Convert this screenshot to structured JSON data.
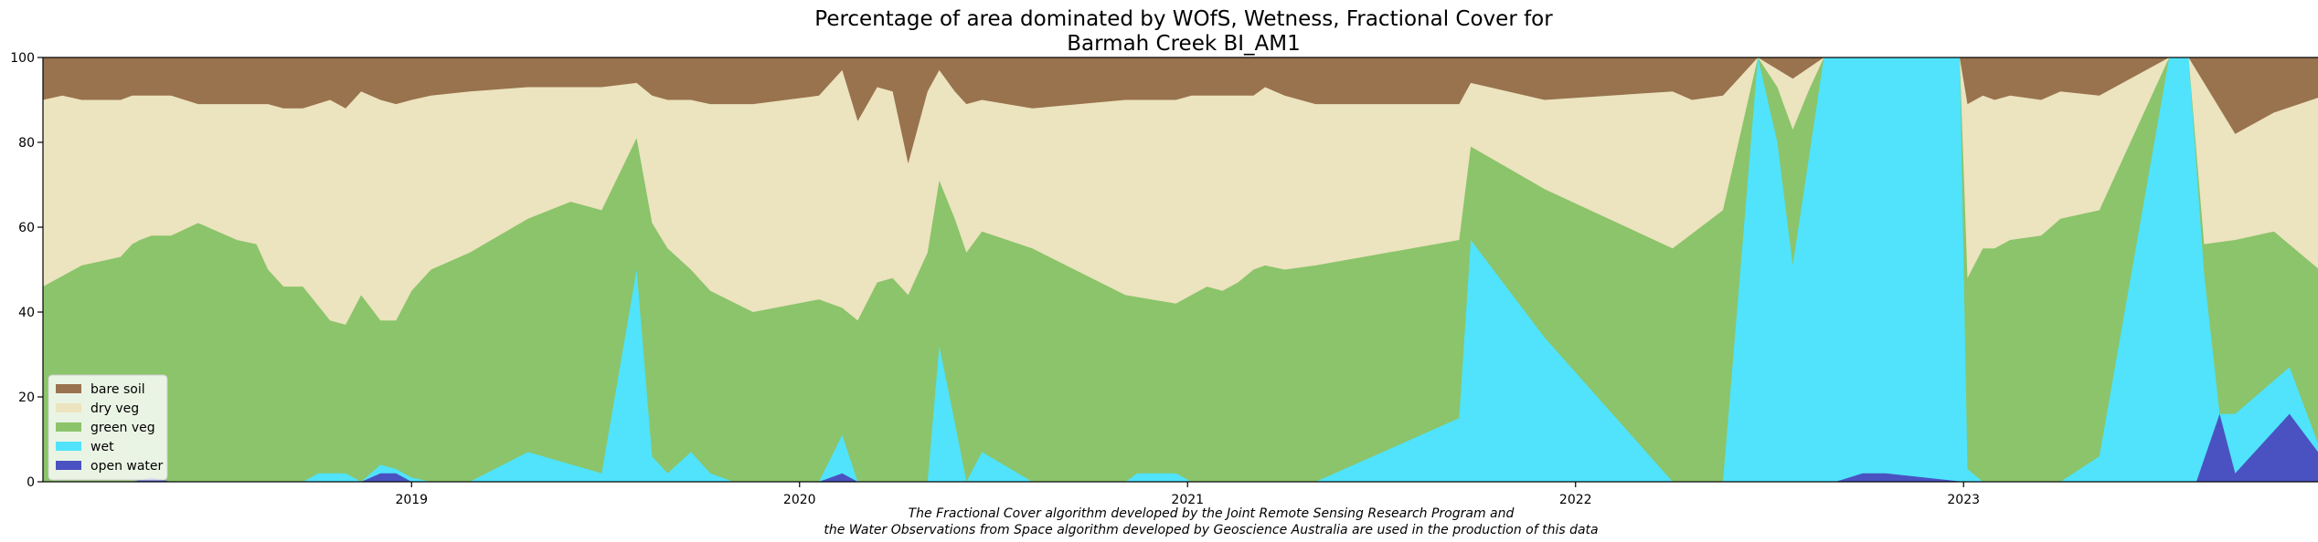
{
  "chart_data": {
    "type": "area",
    "title_lines": [
      "Percentage of area dominated by WOfS, Wetness, Fractional Cover for",
      "Barmah Creek BI_AM1"
    ],
    "caption_lines": [
      "The Fractional Cover algorithm developed by the Joint Remote Sensing Research Program and",
      "the Water Observations from Space algorithm developed by Geoscience Australia are used in the production of this data"
    ],
    "xlim": [
      2018.05,
      2023.93
    ],
    "ylim": [
      0,
      100
    ],
    "x_ticks": [
      {
        "label": "2019",
        "value": 2019.0
      },
      {
        "label": "2020",
        "value": 2020.0
      },
      {
        "label": "2021",
        "value": 2021.0
      },
      {
        "label": "2022",
        "value": 2022.0
      },
      {
        "label": "2023",
        "value": 2023.0
      }
    ],
    "y_ticks": [
      0,
      20,
      40,
      60,
      80,
      100
    ],
    "legend_position": "lower left",
    "series": [
      {
        "name": "open water",
        "color": "#4a52c2",
        "points": [
          [
            2018.05,
            0
          ],
          [
            2018.28,
            0
          ],
          [
            2018.33,
            1
          ],
          [
            2018.38,
            0
          ],
          [
            2018.87,
            0
          ],
          [
            2018.92,
            2
          ],
          [
            2018.96,
            2
          ],
          [
            2019.0,
            0
          ],
          [
            2020.05,
            0
          ],
          [
            2020.11,
            2
          ],
          [
            2020.15,
            0
          ],
          [
            2022.67,
            0
          ],
          [
            2022.74,
            2
          ],
          [
            2022.8,
            2
          ],
          [
            2023.0,
            0
          ],
          [
            2023.6,
            0
          ],
          [
            2023.66,
            16
          ],
          [
            2023.7,
            2
          ],
          [
            2023.84,
            16
          ],
          [
            2023.93,
            5
          ]
        ]
      },
      {
        "name": "wet",
        "color": "#50e3fb",
        "points": [
          [
            2018.05,
            0
          ],
          [
            2018.28,
            0
          ],
          [
            2018.33,
            1
          ],
          [
            2018.38,
            0
          ],
          [
            2018.72,
            0
          ],
          [
            2018.76,
            2
          ],
          [
            2018.83,
            2
          ],
          [
            2018.87,
            0
          ],
          [
            2018.92,
            4
          ],
          [
            2018.96,
            3
          ],
          [
            2019.0,
            1
          ],
          [
            2019.05,
            0
          ],
          [
            2019.15,
            0
          ],
          [
            2019.3,
            7
          ],
          [
            2019.49,
            2
          ],
          [
            2019.58,
            50
          ],
          [
            2019.62,
            6
          ],
          [
            2019.66,
            2
          ],
          [
            2019.72,
            7
          ],
          [
            2019.77,
            2
          ],
          [
            2019.83,
            0
          ],
          [
            2020.05,
            0
          ],
          [
            2020.11,
            11
          ],
          [
            2020.15,
            0
          ],
          [
            2020.33,
            0
          ],
          [
            2020.36,
            32
          ],
          [
            2020.4,
            14
          ],
          [
            2020.43,
            0
          ],
          [
            2020.47,
            7
          ],
          [
            2020.6,
            0
          ],
          [
            2020.84,
            0
          ],
          [
            2020.87,
            2
          ],
          [
            2020.97,
            2
          ],
          [
            2021.01,
            0
          ],
          [
            2021.33,
            0
          ],
          [
            2021.7,
            15
          ],
          [
            2021.73,
            57
          ],
          [
            2021.92,
            34
          ],
          [
            2022.25,
            0
          ],
          [
            2022.38,
            0
          ],
          [
            2022.47,
            100
          ],
          [
            2022.52,
            80
          ],
          [
            2022.56,
            51
          ],
          [
            2022.64,
            100
          ],
          [
            2022.99,
            100
          ],
          [
            2023.01,
            3
          ],
          [
            2023.05,
            0
          ],
          [
            2023.25,
            0
          ],
          [
            2023.35,
            6
          ],
          [
            2023.53,
            100
          ],
          [
            2023.58,
            100
          ],
          [
            2023.62,
            49
          ],
          [
            2023.66,
            16
          ],
          [
            2023.7,
            16
          ],
          [
            2023.84,
            27
          ],
          [
            2023.93,
            5
          ]
        ]
      },
      {
        "name": "green veg",
        "color": "#8bc46a",
        "points": [
          [
            2018.05,
            46
          ],
          [
            2018.15,
            51
          ],
          [
            2018.2,
            52
          ],
          [
            2018.25,
            53
          ],
          [
            2018.28,
            56
          ],
          [
            2018.3,
            57
          ],
          [
            2018.33,
            58
          ],
          [
            2018.38,
            58
          ],
          [
            2018.45,
            61
          ],
          [
            2018.55,
            57
          ],
          [
            2018.6,
            56
          ],
          [
            2018.63,
            50
          ],
          [
            2018.67,
            46
          ],
          [
            2018.72,
            46
          ],
          [
            2018.79,
            38
          ],
          [
            2018.83,
            37
          ],
          [
            2018.87,
            44
          ],
          [
            2018.92,
            38
          ],
          [
            2018.96,
            38
          ],
          [
            2019.0,
            45
          ],
          [
            2019.05,
            50
          ],
          [
            2019.15,
            54
          ],
          [
            2019.3,
            62
          ],
          [
            2019.41,
            66
          ],
          [
            2019.49,
            64
          ],
          [
            2019.58,
            81
          ],
          [
            2019.62,
            61
          ],
          [
            2019.66,
            55
          ],
          [
            2019.72,
            50
          ],
          [
            2019.77,
            45
          ],
          [
            2019.88,
            40
          ],
          [
            2020.05,
            43
          ],
          [
            2020.11,
            41
          ],
          [
            2020.15,
            38
          ],
          [
            2020.2,
            47
          ],
          [
            2020.24,
            48
          ],
          [
            2020.28,
            44
          ],
          [
            2020.33,
            54
          ],
          [
            2020.36,
            71
          ],
          [
            2020.4,
            62
          ],
          [
            2020.43,
            54
          ],
          [
            2020.47,
            59
          ],
          [
            2020.6,
            55
          ],
          [
            2020.84,
            44
          ],
          [
            2020.97,
            42
          ],
          [
            2021.01,
            44
          ],
          [
            2021.05,
            46
          ],
          [
            2021.09,
            45
          ],
          [
            2021.13,
            47
          ],
          [
            2021.17,
            50
          ],
          [
            2021.2,
            51
          ],
          [
            2021.25,
            50
          ],
          [
            2021.33,
            51
          ],
          [
            2021.7,
            57
          ],
          [
            2021.73,
            79
          ],
          [
            2021.92,
            69
          ],
          [
            2022.25,
            55
          ],
          [
            2022.38,
            64
          ],
          [
            2022.47,
            100
          ],
          [
            2022.52,
            93
          ],
          [
            2022.56,
            83
          ],
          [
            2022.6,
            92
          ],
          [
            2022.64,
            100
          ],
          [
            2022.99,
            100
          ],
          [
            2023.01,
            48
          ],
          [
            2023.05,
            55
          ],
          [
            2023.08,
            55
          ],
          [
            2023.12,
            57
          ],
          [
            2023.2,
            58
          ],
          [
            2023.25,
            62
          ],
          [
            2023.35,
            64
          ],
          [
            2023.53,
            100
          ],
          [
            2023.58,
            100
          ],
          [
            2023.62,
            56
          ],
          [
            2023.7,
            57
          ],
          [
            2023.8,
            59
          ],
          [
            2023.93,
            49
          ]
        ]
      },
      {
        "name": "dry veg",
        "color": "#ece3bf",
        "points": [
          [
            2018.05,
            90
          ],
          [
            2018.1,
            91
          ],
          [
            2018.15,
            90
          ],
          [
            2018.2,
            90
          ],
          [
            2018.25,
            90
          ],
          [
            2018.28,
            91
          ],
          [
            2018.33,
            91
          ],
          [
            2018.38,
            91
          ],
          [
            2018.45,
            89
          ],
          [
            2018.55,
            89
          ],
          [
            2018.6,
            89
          ],
          [
            2018.63,
            89
          ],
          [
            2018.67,
            88
          ],
          [
            2018.72,
            88
          ],
          [
            2018.79,
            90
          ],
          [
            2018.83,
            88
          ],
          [
            2018.87,
            92
          ],
          [
            2018.92,
            90
          ],
          [
            2018.96,
            89
          ],
          [
            2019.0,
            90
          ],
          [
            2019.05,
            91
          ],
          [
            2019.15,
            92
          ],
          [
            2019.3,
            93
          ],
          [
            2019.41,
            93
          ],
          [
            2019.49,
            93
          ],
          [
            2019.58,
            94
          ],
          [
            2019.62,
            91
          ],
          [
            2019.66,
            90
          ],
          [
            2019.72,
            90
          ],
          [
            2019.77,
            89
          ],
          [
            2019.88,
            89
          ],
          [
            2020.05,
            91
          ],
          [
            2020.11,
            97
          ],
          [
            2020.15,
            85
          ],
          [
            2020.2,
            93
          ],
          [
            2020.24,
            92
          ],
          [
            2020.28,
            75
          ],
          [
            2020.33,
            92
          ],
          [
            2020.36,
            97
          ],
          [
            2020.4,
            92
          ],
          [
            2020.43,
            89
          ],
          [
            2020.47,
            90
          ],
          [
            2020.6,
            88
          ],
          [
            2020.84,
            90
          ],
          [
            2020.97,
            90
          ],
          [
            2021.01,
            91
          ],
          [
            2021.09,
            91
          ],
          [
            2021.17,
            91
          ],
          [
            2021.2,
            93
          ],
          [
            2021.25,
            91
          ],
          [
            2021.33,
            89
          ],
          [
            2021.7,
            89
          ],
          [
            2021.73,
            94
          ],
          [
            2021.92,
            90
          ],
          [
            2022.25,
            92
          ],
          [
            2022.3,
            90
          ],
          [
            2022.38,
            91
          ],
          [
            2022.47,
            100
          ],
          [
            2022.56,
            95
          ],
          [
            2022.64,
            100
          ],
          [
            2022.99,
            100
          ],
          [
            2023.01,
            89
          ],
          [
            2023.05,
            91
          ],
          [
            2023.08,
            90
          ],
          [
            2023.12,
            91
          ],
          [
            2023.2,
            90
          ],
          [
            2023.25,
            92
          ],
          [
            2023.35,
            91
          ],
          [
            2023.53,
            100
          ],
          [
            2023.58,
            100
          ],
          [
            2023.7,
            82
          ],
          [
            2023.8,
            87
          ],
          [
            2023.93,
            91
          ]
        ]
      },
      {
        "name": "bare soil",
        "color": "#98734d",
        "points": [
          [
            2018.05,
            100
          ],
          [
            2023.93,
            100
          ]
        ]
      }
    ]
  }
}
